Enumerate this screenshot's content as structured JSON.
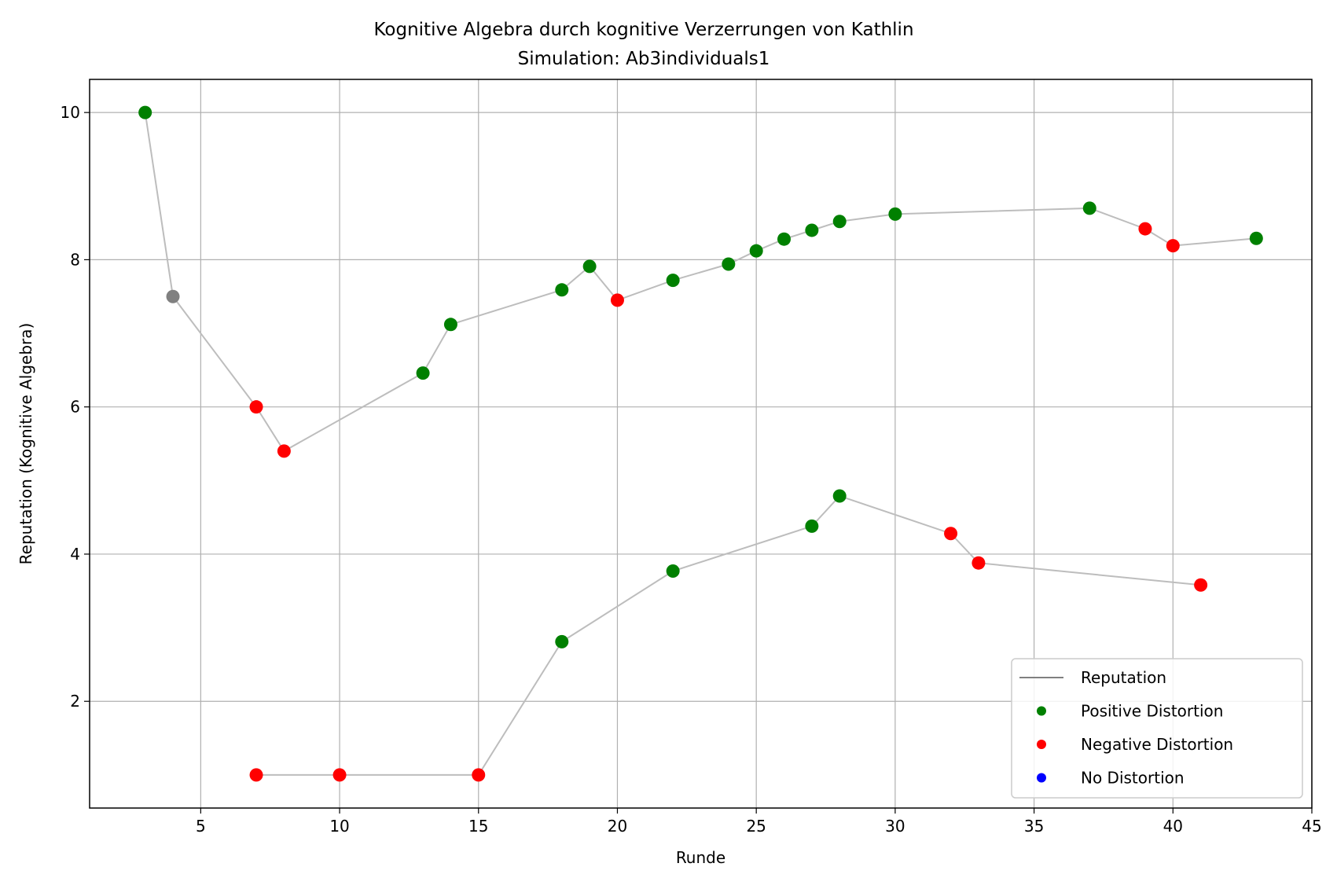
{
  "chart_data": {
    "type": "line",
    "title": "Kognitive Algebra durch kognitive Verzerrungen von Kathlin",
    "subtitle": "Simulation: Ab3individuals1",
    "xlabel": "Runde",
    "ylabel": "Reputation (Kognitive Algebra)",
    "xlim": [
      1,
      45
    ],
    "ylim": [
      0.55,
      10.45
    ],
    "xticks": [
      5,
      10,
      15,
      20,
      25,
      30,
      35,
      40,
      45
    ],
    "yticks": [
      2,
      4,
      6,
      8,
      10
    ],
    "grid": true,
    "legend_position": "lower-right",
    "legend": [
      {
        "label": "Reputation",
        "kind": "line",
        "color": "#808080"
      },
      {
        "label": "Positive Distortion",
        "kind": "marker",
        "color": "#008000"
      },
      {
        "label": "Negative Distortion",
        "kind": "marker",
        "color": "#ff0000"
      },
      {
        "label": "No Distortion",
        "kind": "marker",
        "color": "#0000ff"
      }
    ],
    "series": [
      {
        "line_color": "#bdbdbd",
        "points": [
          {
            "x": 3,
            "y": 10.0,
            "type": "positive"
          },
          {
            "x": 4,
            "y": 7.5,
            "type": "neutral"
          },
          {
            "x": 7,
            "y": 6.0,
            "type": "negative"
          },
          {
            "x": 8,
            "y": 5.4,
            "type": "negative"
          },
          {
            "x": 13,
            "y": 6.46,
            "type": "positive"
          },
          {
            "x": 14,
            "y": 7.12,
            "type": "positive"
          },
          {
            "x": 18,
            "y": 7.59,
            "type": "positive"
          },
          {
            "x": 19,
            "y": 7.91,
            "type": "positive"
          },
          {
            "x": 20,
            "y": 7.45,
            "type": "negative"
          },
          {
            "x": 22,
            "y": 7.72,
            "type": "positive"
          },
          {
            "x": 24,
            "y": 7.94,
            "type": "positive"
          },
          {
            "x": 25,
            "y": 8.12,
            "type": "positive"
          },
          {
            "x": 26,
            "y": 8.28,
            "type": "positive"
          },
          {
            "x": 27,
            "y": 8.4,
            "type": "positive"
          },
          {
            "x": 28,
            "y": 8.52,
            "type": "positive"
          },
          {
            "x": 30,
            "y": 8.62,
            "type": "positive"
          },
          {
            "x": 37,
            "y": 8.7,
            "type": "positive"
          },
          {
            "x": 39,
            "y": 8.42,
            "type": "negative"
          },
          {
            "x": 40,
            "y": 8.19,
            "type": "negative"
          },
          {
            "x": 43,
            "y": 8.29,
            "type": "positive"
          }
        ]
      },
      {
        "line_color": "#bdbdbd",
        "points": [
          {
            "x": 7,
            "y": 1.0,
            "type": "negative"
          },
          {
            "x": 10,
            "y": 1.0,
            "type": "negative"
          },
          {
            "x": 15,
            "y": 1.0,
            "type": "negative"
          },
          {
            "x": 18,
            "y": 2.81,
            "type": "positive"
          },
          {
            "x": 22,
            "y": 3.77,
            "type": "positive"
          },
          {
            "x": 27,
            "y": 4.38,
            "type": "positive"
          },
          {
            "x": 28,
            "y": 4.79,
            "type": "positive"
          },
          {
            "x": 32,
            "y": 4.28,
            "type": "negative"
          },
          {
            "x": 33,
            "y": 3.88,
            "type": "negative"
          },
          {
            "x": 41,
            "y": 3.58,
            "type": "negative"
          }
        ]
      }
    ],
    "marker_colors": {
      "positive": "#008000",
      "negative": "#ff0000",
      "neutral": "#808080",
      "none": "#0000ff"
    }
  }
}
